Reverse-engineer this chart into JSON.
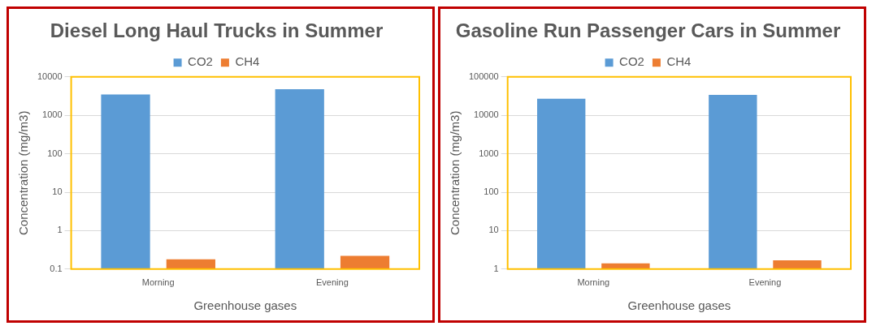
{
  "chart_data": [
    {
      "type": "bar",
      "title": "Diesel Long Haul Trucks in Summer",
      "xlabel": "Greenhouse gases",
      "ylabel": "Concentration (mg/m3)",
      "categories": [
        "Morning",
        "Evening"
      ],
      "series": [
        {
          "name": "CO2",
          "color": "#5b9bd5",
          "values": [
            3500,
            4800
          ]
        },
        {
          "name": "CH4",
          "color": "#ed7d31",
          "values": [
            0.18,
            0.22
          ]
        }
      ],
      "log": true,
      "ylim": [
        0.1,
        10000
      ],
      "yticks": [
        0.1,
        1,
        10,
        100,
        1000,
        10000
      ],
      "grid": "y",
      "legend": "top"
    },
    {
      "type": "bar",
      "title": "Gasoline Run Passenger Cars in Summer",
      "xlabel": "Greenhouse gases",
      "ylabel": "Concentration (mg/m3)",
      "categories": [
        "Morning",
        "Evening"
      ],
      "series": [
        {
          "name": "CO2",
          "color": "#5b9bd5",
          "values": [
            27000,
            34000
          ]
        },
        {
          "name": "CH4",
          "color": "#ed7d31",
          "values": [
            1.4,
            1.7
          ]
        }
      ],
      "log": true,
      "ylim": [
        1,
        100000
      ],
      "yticks": [
        1,
        10,
        100,
        1000,
        10000,
        100000
      ],
      "grid": "y",
      "legend": "top"
    }
  ]
}
